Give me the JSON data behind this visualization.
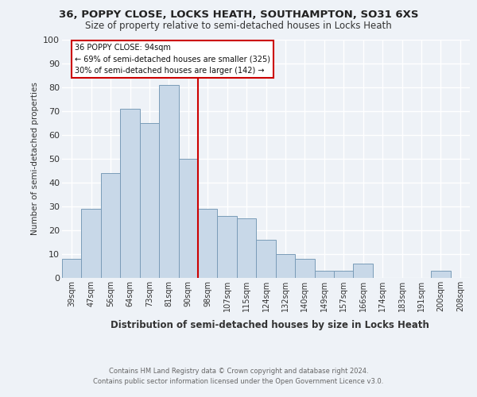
{
  "title1": "36, POPPY CLOSE, LOCKS HEATH, SOUTHAMPTON, SO31 6XS",
  "title2": "Size of property relative to semi-detached houses in Locks Heath",
  "xlabel": "Distribution of semi-detached houses by size in Locks Heath",
  "ylabel_text": "Number of semi-detached properties",
  "footnote1": "Contains HM Land Registry data © Crown copyright and database right 2024.",
  "footnote2": "Contains public sector information licensed under the Open Government Licence v3.0.",
  "categories": [
    "39sqm",
    "47sqm",
    "56sqm",
    "64sqm",
    "73sqm",
    "81sqm",
    "90sqm",
    "98sqm",
    "107sqm",
    "115sqm",
    "124sqm",
    "132sqm",
    "140sqm",
    "149sqm",
    "157sqm",
    "166sqm",
    "174sqm",
    "183sqm",
    "191sqm",
    "200sqm",
    "208sqm"
  ],
  "values": [
    8,
    29,
    44,
    71,
    65,
    81,
    50,
    29,
    26,
    25,
    16,
    10,
    8,
    3,
    3,
    6,
    0,
    0,
    0,
    3,
    0
  ],
  "bar_color": "#c8d8e8",
  "bar_edge_color": "#7a9cb8",
  "vline_x_index": 6.5,
  "vline_color": "#cc0000",
  "annotation_text1": "36 POPPY CLOSE: 94sqm",
  "annotation_text2": "← 69% of semi-detached houses are smaller (325)",
  "annotation_text3": "30% of semi-detached houses are larger (142) →",
  "annotation_box_color": "#ffffff",
  "annotation_box_edge": "#cc0000",
  "ylim": [
    0,
    100
  ],
  "yticks": [
    0,
    10,
    20,
    30,
    40,
    50,
    60,
    70,
    80,
    90,
    100
  ],
  "bg_color": "#eef2f7",
  "grid_color": "#ffffff",
  "title1_fontsize": 9.5,
  "title2_fontsize": 8.5
}
